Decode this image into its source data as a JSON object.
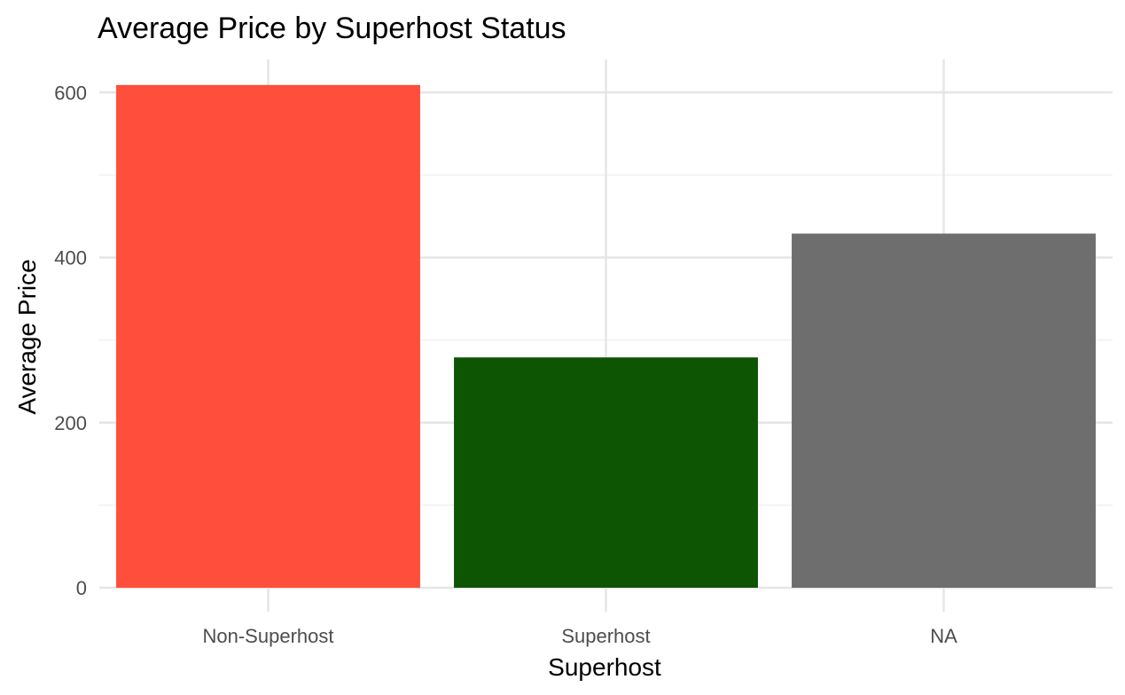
{
  "chart_data": {
    "type": "bar",
    "title": "Average Price by Superhost Status",
    "xlabel": "Superhost",
    "ylabel": "Average Price",
    "categories": [
      "Non-Superhost",
      "Superhost",
      "NA"
    ],
    "values": [
      609,
      279,
      429
    ],
    "colors": [
      "#ff4e3b",
      "#0d5503",
      "#6e6e6e"
    ],
    "ylim": [
      0,
      640
    ],
    "y_ticks": [
      0,
      200,
      400,
      600
    ],
    "y_tick_labels": [
      "0",
      "200",
      "400",
      "600"
    ],
    "grid": true,
    "legend": "none"
  }
}
